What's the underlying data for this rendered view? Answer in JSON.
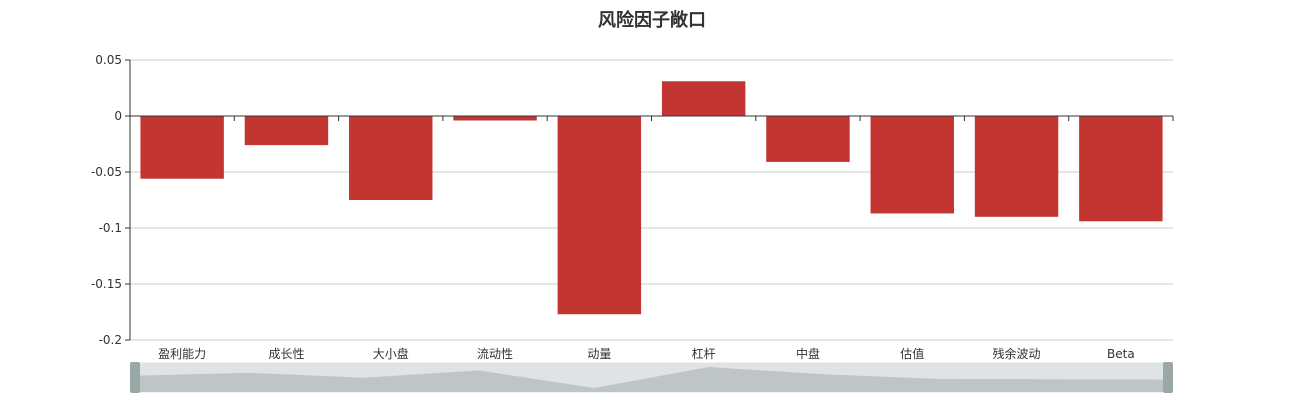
{
  "chart_data": {
    "type": "bar",
    "title": "风险因子敞口",
    "categories": [
      "盈利能力",
      "成长性",
      "大小盘",
      "流动性",
      "动量",
      "杠杆",
      "中盘",
      "估值",
      "残余波动",
      "Beta"
    ],
    "values": [
      -0.056,
      -0.026,
      -0.075,
      -0.004,
      -0.177,
      0.031,
      -0.041,
      -0.087,
      -0.09,
      -0.094
    ],
    "ylim": [
      -0.2,
      0.05
    ],
    "yticks": [
      0.05,
      0,
      -0.05,
      -0.1,
      -0.15,
      -0.2
    ],
    "ytick_labels": [
      "0.05",
      "0",
      "-0.05",
      "-0.1",
      "-0.15",
      "-0.2"
    ],
    "grid": true,
    "bar_color": "#c23531",
    "has_data_zoom_slider": true
  }
}
